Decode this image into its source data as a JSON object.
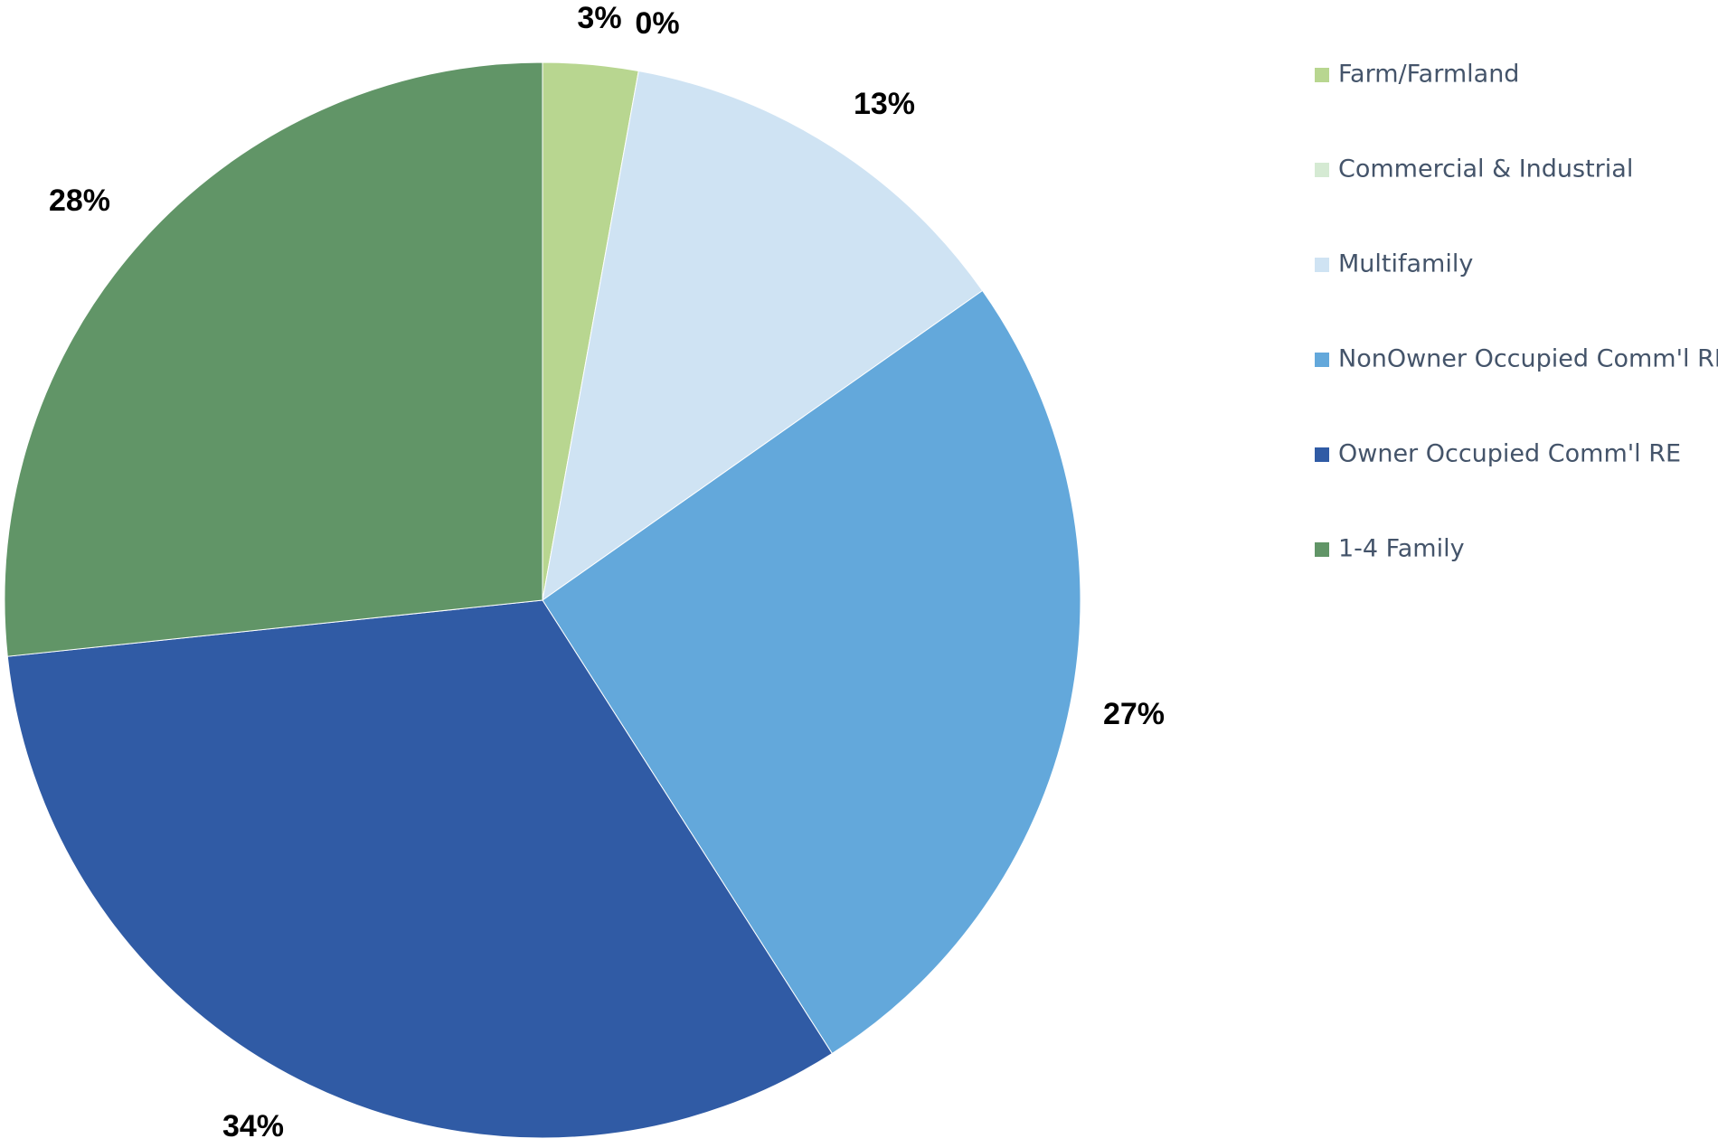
{
  "chart_data": {
    "type": "pie",
    "title": "",
    "start_angle_deg": 0,
    "direction": "clockwise",
    "legend_position": "right",
    "slices": [
      {
        "name": "Farm/Farmland",
        "value": 3,
        "label": "3%",
        "color": "#b8d690"
      },
      {
        "name": "Commercial & Industrial",
        "value": 0,
        "label": "0%",
        "color": "#d5ead3"
      },
      {
        "name": "Multifamily",
        "value": 13,
        "label": "13%",
        "color": "#cfe3f3"
      },
      {
        "name": "NonOwner Occupied Comm'l RE",
        "value": 27,
        "label": "27%",
        "color": "#63a8db"
      },
      {
        "name": "Owner Occupied Comm'l RE",
        "value": 34,
        "label": "34%",
        "color": "#305ba5"
      },
      {
        "name": "1-4 Family",
        "value": 28,
        "label": "28%",
        "color": "#619567"
      }
    ]
  }
}
